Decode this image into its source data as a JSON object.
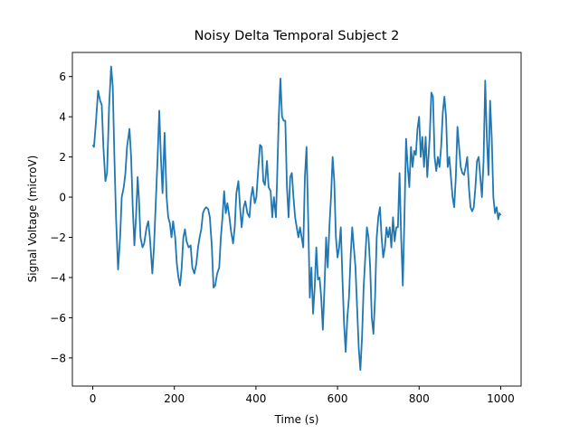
{
  "chart_data": {
    "type": "line",
    "title": "Noisy Delta Temporal Subject 2",
    "x_label": "Time (s)",
    "y_label": "Signal Voltage (microV)",
    "x": [
      0,
      3,
      8,
      13,
      18,
      22,
      26,
      31,
      35,
      40,
      45,
      49,
      53,
      57,
      62,
      67,
      71,
      76,
      80,
      84,
      90,
      94,
      98,
      102,
      106,
      110,
      113,
      117,
      122,
      126,
      132,
      136,
      140,
      146,
      150,
      155,
      159,
      163,
      167,
      171,
      176,
      181,
      185,
      189,
      193,
      197,
      202,
      206,
      210,
      214,
      218,
      222,
      226,
      230,
      235,
      240,
      244,
      249,
      254,
      258,
      262,
      266,
      270,
      274,
      278,
      283,
      287,
      292,
      296,
      300,
      305,
      310,
      314,
      318,
      322,
      326,
      330,
      335,
      339,
      344,
      348,
      352,
      357,
      361,
      365,
      370,
      374,
      379,
      384,
      388,
      392,
      397,
      401,
      406,
      410,
      414,
      418,
      422,
      427,
      431,
      436,
      440,
      444,
      449,
      452,
      456,
      460,
      464,
      468,
      472,
      476,
      480,
      484,
      488,
      492,
      496,
      500,
      504,
      508,
      512,
      516,
      520,
      524,
      528,
      532,
      536,
      540,
      544,
      548,
      552,
      556,
      560,
      564,
      568,
      572,
      576,
      580,
      584,
      588,
      592,
      596,
      600,
      604,
      608,
      612,
      616,
      620,
      624,
      628,
      632,
      636,
      640,
      644,
      648,
      652,
      656,
      660,
      664,
      668,
      672,
      676,
      680,
      684,
      688,
      692,
      696,
      700,
      704,
      708,
      712,
      716,
      720,
      724,
      728,
      732,
      736,
      740,
      744,
      748,
      752,
      756,
      760,
      764,
      768,
      772,
      776,
      780,
      784,
      788,
      792,
      796,
      800,
      804,
      808,
      812,
      816,
      820,
      826,
      830,
      834,
      838,
      842,
      846,
      850,
      854,
      858,
      862,
      866,
      870,
      874,
      878,
      882,
      886,
      890,
      894,
      898,
      902,
      906,
      910,
      914,
      918,
      922,
      926,
      930,
      934,
      938,
      942,
      946,
      950,
      954,
      958,
      962,
      966,
      970,
      974,
      978,
      982,
      986,
      990,
      994,
      997,
      1000
    ],
    "series": [
      {
        "color": "#1f77b4",
        "values": [
          2.6,
          2.5,
          3.8,
          5.3,
          4.8,
          4.6,
          2.5,
          0.8,
          1.2,
          4.5,
          6.5,
          5.5,
          2,
          -1,
          -3.6,
          -2,
          0,
          0.5,
          1.2,
          2.5,
          3.4,
          2,
          -0.5,
          -2.4,
          -1,
          1,
          0,
          -2,
          -2.5,
          -2.3,
          -1.5,
          -1.2,
          -2,
          -3.8,
          -2.5,
          0,
          2,
          4.3,
          2,
          0.2,
          3.2,
          0,
          -1,
          -1.3,
          -2,
          -1.2,
          -2,
          -3.3,
          -4,
          -4.4,
          -3.5,
          -2,
          -1.6,
          -2.2,
          -2.5,
          -2.4,
          -3.5,
          -3.8,
          -3.3,
          -2.5,
          -2,
          -1.6,
          -0.8,
          -0.6,
          -0.5,
          -0.6,
          -1,
          -2.5,
          -4.5,
          -4.4,
          -3.8,
          -3.5,
          -2,
          -1,
          0.3,
          -0.8,
          -0.3,
          -1,
          -1.7,
          -2.3,
          -1.5,
          0.2,
          0.8,
          -0.5,
          -1.5,
          -0.5,
          -0.2,
          -0.8,
          -1,
          0,
          0.5,
          -0.3,
          0,
          1.5,
          2.6,
          2.5,
          0.8,
          0.6,
          1.8,
          0.5,
          0.3,
          -1,
          0,
          -1,
          1,
          4,
          5.9,
          4,
          3.8,
          3.8,
          0.5,
          -1,
          1,
          1.2,
          0,
          -1,
          -1.5,
          -2,
          -1.5,
          -2,
          -2.5,
          1,
          2.5,
          -1,
          -5,
          -3.5,
          -5.8,
          -4.5,
          -2.5,
          -4.1,
          -4,
          -5,
          -6.6,
          -4.5,
          -2,
          -3.5,
          -1.5,
          0,
          2,
          0.8,
          -2,
          -3,
          -2.5,
          -1.5,
          -4,
          -6.3,
          -7.7,
          -6,
          -5,
          -3,
          -1.5,
          -2.5,
          -3.5,
          -5.5,
          -7.5,
          -8.6,
          -7,
          -4.5,
          -3,
          -1.5,
          -2,
          -3.5,
          -6,
          -6.8,
          -5,
          -2,
          -1,
          -0.5,
          -2,
          -3,
          -2.5,
          -1.5,
          -2,
          -1.5,
          -2.5,
          -1,
          -2.2,
          -1.5,
          -1.5,
          1.2,
          -2,
          -4.4,
          -1,
          2.9,
          1.5,
          0.5,
          2.5,
          1.5,
          2.3,
          2.1,
          3.4,
          4,
          2,
          3,
          1.5,
          3,
          1,
          3,
          5.2,
          5,
          2,
          1.3,
          2,
          1.5,
          2.5,
          4.2,
          5,
          4,
          1.5,
          2,
          1,
          0,
          -0.5,
          1,
          3.5,
          2.5,
          1.5,
          1.2,
          1.1,
          1.5,
          2,
          0.5,
          -0.5,
          -0.7,
          -0.5,
          0.5,
          1.8,
          2,
          1,
          0,
          1.8,
          5.8,
          3,
          1.1,
          4.8,
          3,
          0,
          -0.8,
          -0.5,
          -1.1,
          -0.8,
          -0.9
        ]
      }
    ],
    "xlim": [
      -50,
      1050
    ],
    "ylim": [
      -9.4,
      7.2
    ],
    "xticks": [
      0,
      200,
      400,
      600,
      800,
      1000
    ],
    "yticks": [
      {
        "value": -8,
        "label": "−8"
      },
      {
        "value": -6,
        "label": "−6"
      },
      {
        "value": -4,
        "label": "−4"
      },
      {
        "value": -2,
        "label": "−2"
      },
      0,
      2,
      4,
      6
    ],
    "grid": false
  }
}
